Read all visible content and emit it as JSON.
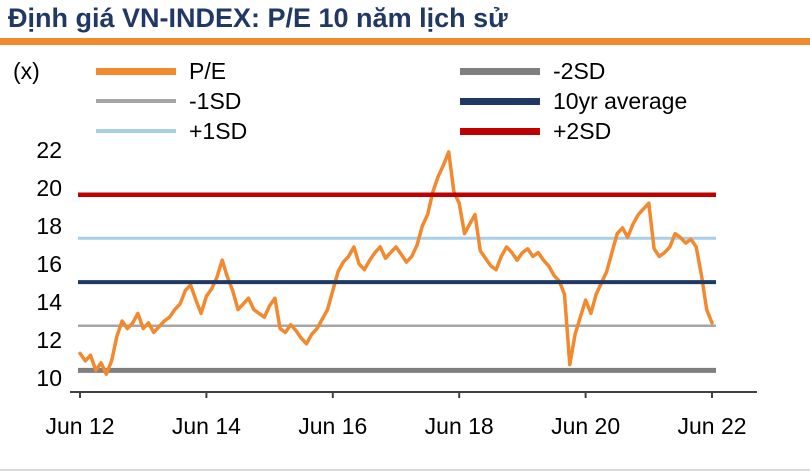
{
  "header": {
    "title": "Định giá VN-INDEX: P/E 10 năm lịch sử",
    "unit_label": "(x)"
  },
  "colors": {
    "title": "#1F3864",
    "accent_bar": "#F08A2D",
    "axis": "#404040"
  },
  "legend": [
    {
      "label": "P/E",
      "color": "#F2892E",
      "weight": "thick"
    },
    {
      "label": "-1SD",
      "color": "#A6A6A6",
      "weight": "thin"
    },
    {
      "label": "+1SD",
      "color": "#A9CFE8",
      "weight": "thin"
    },
    {
      "label": "-2SD",
      "color": "#7F7F7F",
      "weight": "thick"
    },
    {
      "label": "10yr average",
      "color": "#1F3864",
      "weight": "thick"
    },
    {
      "label": "+2SD",
      "color": "#BE0000",
      "weight": "thick"
    }
  ],
  "chart_data": {
    "type": "line",
    "title": "Định giá VN-INDEX: P/E 10 năm lịch sử",
    "ylabel": "(x)",
    "ylim": [
      10,
      22
    ],
    "yticks": [
      10,
      12,
      14,
      16,
      18,
      20,
      22
    ],
    "xticks": [
      "Jun 12",
      "Jun 14",
      "Jun 16",
      "Jun 18",
      "Jun 20",
      "Jun 22"
    ],
    "xtick_indices": [
      0,
      24,
      48,
      72,
      96,
      120
    ],
    "x_frequency": "monthly",
    "grid": "off",
    "legend_position": "top",
    "reference_lines": {
      "-2SD": 10.4,
      "-1SD": 12.75,
      "10yr average": 15.05,
      "+1SD": 17.35,
      "+2SD": 19.65
    },
    "series": [
      {
        "name": "P/E",
        "values": [
          11.3,
          10.9,
          11.2,
          10.4,
          10.8,
          10.2,
          10.9,
          12.2,
          13.0,
          12.6,
          12.9,
          13.4,
          12.6,
          12.9,
          12.4,
          12.7,
          13.0,
          13.2,
          13.6,
          13.9,
          14.6,
          14.9,
          14.1,
          13.4,
          14.3,
          14.7,
          15.3,
          16.2,
          15.3,
          14.6,
          13.6,
          13.9,
          14.2,
          13.6,
          13.4,
          13.2,
          13.8,
          14.2,
          12.6,
          12.4,
          12.8,
          12.5,
          12.1,
          11.8,
          12.3,
          12.6,
          13.1,
          13.6,
          14.6,
          15.6,
          16.1,
          16.4,
          16.9,
          16.0,
          15.7,
          16.2,
          16.6,
          16.9,
          16.3,
          16.6,
          16.9,
          16.5,
          16.1,
          16.4,
          17.0,
          18.0,
          18.6,
          19.8,
          20.6,
          21.2,
          21.9,
          19.8,
          19.2,
          17.6,
          18.1,
          18.6,
          16.7,
          16.3,
          15.9,
          15.7,
          16.4,
          16.9,
          16.6,
          16.2,
          16.6,
          16.8,
          16.4,
          16.6,
          16.2,
          15.9,
          15.4,
          15.1,
          14.4,
          10.7,
          12.3,
          13.2,
          14.1,
          13.4,
          14.4,
          15.0,
          15.6,
          16.6,
          17.6,
          17.9,
          17.4,
          18.1,
          18.6,
          18.9,
          19.2,
          16.8,
          16.4,
          16.6,
          16.9,
          17.6,
          17.4,
          17.1,
          17.3,
          16.9,
          15.4,
          13.6,
          12.9
        ]
      }
    ]
  }
}
